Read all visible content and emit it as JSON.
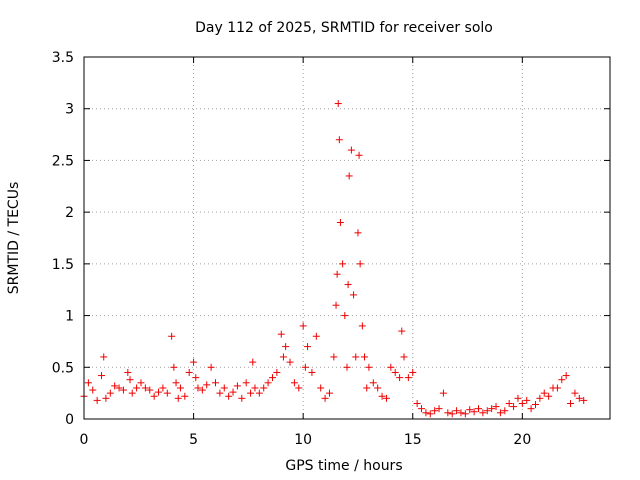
{
  "chart_data": {
    "type": "scatter",
    "title": "Day 112 of 2025, SRMTID for receiver solo",
    "xlabel": "GPS time / hours",
    "ylabel": "SRMTID / TECUs",
    "xlim": [
      0,
      24
    ],
    "ylim": [
      0,
      3.5
    ],
    "x_ticks": [
      0,
      5,
      10,
      15,
      20
    ],
    "x_tick_labels": [
      "0",
      "5",
      "10",
      "15",
      "20"
    ],
    "y_ticks": [
      0,
      0.5,
      1,
      1.5,
      2,
      2.5,
      3,
      3.5
    ],
    "y_tick_labels": [
      "0",
      "0.5",
      "1",
      "1.5",
      "2",
      "2.5",
      "3",
      "3.5"
    ],
    "grid": true,
    "marker": "+",
    "color": "#ee0000",
    "series": [
      {
        "name": "SRMTID",
        "x": [
          0.0,
          0.2,
          0.4,
          0.6,
          0.8,
          0.9,
          1.0,
          1.2,
          1.4,
          1.6,
          1.8,
          2.0,
          2.1,
          2.2,
          2.4,
          2.6,
          2.8,
          3.0,
          3.2,
          3.4,
          3.6,
          3.8,
          4.0,
          4.1,
          4.2,
          4.3,
          4.4,
          4.6,
          4.8,
          5.0,
          5.1,
          5.2,
          5.4,
          5.6,
          5.8,
          6.0,
          6.2,
          6.4,
          6.6,
          6.8,
          7.0,
          7.2,
          7.4,
          7.6,
          7.7,
          7.8,
          8.0,
          8.2,
          8.4,
          8.6,
          8.8,
          9.0,
          9.1,
          9.2,
          9.4,
          9.6,
          9.8,
          10.0,
          10.1,
          10.2,
          10.4,
          10.6,
          10.8,
          11.0,
          11.2,
          11.4,
          11.5,
          11.55,
          11.6,
          11.65,
          11.7,
          11.8,
          11.9,
          12.0,
          12.05,
          12.1,
          12.2,
          12.3,
          12.4,
          12.5,
          12.55,
          12.6,
          12.7,
          12.8,
          12.9,
          13.0,
          13.2,
          13.4,
          13.6,
          13.8,
          14.0,
          14.2,
          14.4,
          14.5,
          14.6,
          14.8,
          15.0,
          15.2,
          15.4,
          15.6,
          15.8,
          16.0,
          16.2,
          16.4,
          16.6,
          16.8,
          17.0,
          17.2,
          17.4,
          17.6,
          17.8,
          18.0,
          18.2,
          18.4,
          18.6,
          18.8,
          19.0,
          19.2,
          19.4,
          19.6,
          19.8,
          20.0,
          20.2,
          20.4,
          20.6,
          20.8,
          21.0,
          21.2,
          21.4,
          21.6,
          21.8,
          22.0,
          22.2,
          22.4,
          22.6,
          22.8
        ],
        "y": [
          0.22,
          0.35,
          0.28,
          0.18,
          0.42,
          0.6,
          0.2,
          0.25,
          0.32,
          0.3,
          0.28,
          0.45,
          0.38,
          0.25,
          0.3,
          0.35,
          0.3,
          0.28,
          0.22,
          0.26,
          0.3,
          0.25,
          0.8,
          0.5,
          0.35,
          0.2,
          0.3,
          0.22,
          0.45,
          0.55,
          0.4,
          0.3,
          0.28,
          0.33,
          0.5,
          0.35,
          0.25,
          0.3,
          0.22,
          0.26,
          0.32,
          0.2,
          0.35,
          0.25,
          0.55,
          0.3,
          0.25,
          0.3,
          0.35,
          0.4,
          0.45,
          0.82,
          0.6,
          0.7,
          0.55,
          0.35,
          0.3,
          0.9,
          0.5,
          0.7,
          0.45,
          0.8,
          0.3,
          0.2,
          0.25,
          0.6,
          1.1,
          1.4,
          3.05,
          2.7,
          1.9,
          1.5,
          1.0,
          0.5,
          1.3,
          2.35,
          2.6,
          1.2,
          0.6,
          1.8,
          2.55,
          1.5,
          0.9,
          0.6,
          0.3,
          0.5,
          0.35,
          0.3,
          0.22,
          0.2,
          0.5,
          0.45,
          0.4,
          0.85,
          0.6,
          0.4,
          0.45,
          0.15,
          0.1,
          0.06,
          0.05,
          0.08,
          0.1,
          0.25,
          0.06,
          0.05,
          0.08,
          0.06,
          0.05,
          0.09,
          0.07,
          0.1,
          0.06,
          0.08,
          0.1,
          0.12,
          0.06,
          0.08,
          0.15,
          0.12,
          0.2,
          0.15,
          0.18,
          0.1,
          0.14,
          0.2,
          0.25,
          0.22,
          0.3,
          0.3,
          0.38,
          0.42,
          0.15,
          0.25,
          0.2,
          0.18
        ]
      }
    ]
  }
}
